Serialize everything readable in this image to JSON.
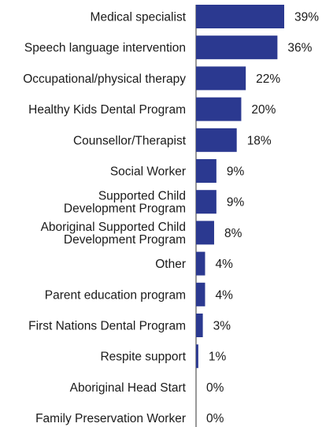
{
  "chart_data": {
    "type": "bar",
    "orientation": "horizontal",
    "bar_color": "#2B3990",
    "axis_line_color": "#333333",
    "categories": [
      "Medical specialist",
      "Speech language intervention",
      "Occupational/physical therapy",
      "Healthy Kids Dental Program",
      "Counsellor/Therapist",
      "Social Worker",
      "Supported Child Development Program",
      "Aboriginal Supported Child Development Program",
      "Other",
      "Parent education program",
      "First Nations Dental Program",
      "Respite support",
      "Aboriginal Head Start",
      "Family Preservation Worker"
    ],
    "category_lines": [
      [
        "Medical specialist"
      ],
      [
        "Speech language intervention"
      ],
      [
        "Occupational/physical therapy"
      ],
      [
        "Healthy Kids Dental Program"
      ],
      [
        "Counsellor/Therapist"
      ],
      [
        "Social Worker"
      ],
      [
        "Supported Child",
        "Development Program"
      ],
      [
        "Aboriginal Supported Child",
        "Development Program"
      ],
      [
        "Other"
      ],
      [
        "Parent education program"
      ],
      [
        "First Nations Dental Program"
      ],
      [
        "Respite support"
      ],
      [
        "Aboriginal Head Start"
      ],
      [
        "Family Preservation Worker"
      ]
    ],
    "values": [
      39,
      36,
      22,
      20,
      18,
      9,
      9,
      8,
      4,
      4,
      3,
      1,
      0,
      0
    ],
    "value_labels": [
      "39%",
      "36%",
      "22%",
      "20%",
      "18%",
      "9%",
      "9%",
      "8%",
      "4%",
      "4%",
      "3%",
      "1%",
      "0%",
      "0%"
    ],
    "xlim": [
      0,
      39
    ],
    "grid": false,
    "legend": "none",
    "title": "",
    "xlabel": "",
    "ylabel": ""
  }
}
